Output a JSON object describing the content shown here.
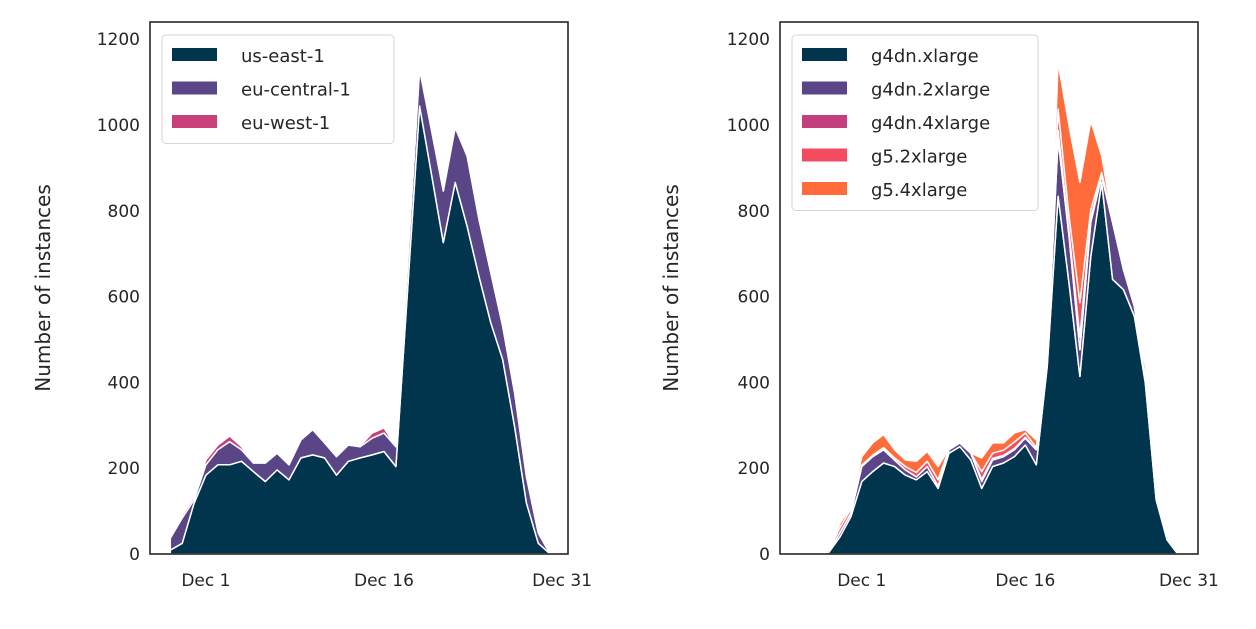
{
  "chart_data": [
    {
      "type": "area",
      "stacked": true,
      "ylabel": "Number of instances",
      "xlabel": "",
      "ylim": [
        0,
        1240
      ],
      "xlim": [
        "Nov 26 07:00",
        "Dec 31 12:00"
      ],
      "yticks": [
        0,
        200,
        400,
        600,
        800,
        1000,
        1200
      ],
      "xticks": [
        "Dec 1",
        "Dec 16",
        "Dec 31"
      ],
      "grid": false,
      "legend_placement": "upper-left",
      "x": [
        "Nov 28",
        "Nov 29",
        "Nov 30",
        "Dec 1",
        "Dec 2",
        "Dec 3",
        "Dec 4",
        "Dec 5",
        "Dec 6",
        "Dec 7",
        "Dec 8",
        "Dec 9",
        "Dec 10",
        "Dec 11",
        "Dec 12",
        "Dec 13",
        "Dec 14",
        "Dec 15",
        "Dec 16",
        "Dec 17",
        "Dec 18",
        "Dec 19",
        "Dec 20",
        "Dec 21",
        "Dec 22",
        "Dec 23",
        "Dec 24",
        "Dec 25",
        "Dec 26",
        "Dec 27",
        "Dec 28",
        "Dec 29",
        "Dec 30"
      ],
      "series": [
        {
          "name": "us-east-1",
          "color": "#01354d",
          "values": [
            9,
            25,
            118,
            184,
            208,
            208,
            216,
            192,
            169,
            196,
            173,
            224,
            231,
            224,
            184,
            216,
            224,
            231,
            239,
            204,
            620,
            1044,
            885,
            726,
            866,
            764,
            647,
            539,
            453,
            297,
            119,
            25,
            0
          ]
        },
        {
          "name": "eu-central-1",
          "color": "#5a4687",
          "values": [
            28,
            59,
            8,
            24,
            35,
            54,
            27,
            20,
            43,
            39,
            35,
            42,
            59,
            35,
            43,
            38,
            26,
            39,
            43,
            46,
            60,
            86,
            103,
            120,
            128,
            164,
            133,
            117,
            78,
            79,
            62,
            24,
            0
          ]
        },
        {
          "name": "eu-west-1",
          "color": "#c83f7a",
          "values": [
            2,
            7,
            7,
            11,
            11,
            13,
            7,
            0,
            0,
            0,
            0,
            2,
            0,
            0,
            0,
            2,
            2,
            12,
            12,
            0,
            0,
            3,
            2,
            2,
            5,
            2,
            0,
            0,
            0,
            0,
            0,
            0,
            0
          ]
        }
      ]
    },
    {
      "type": "area",
      "stacked": true,
      "ylabel": "Number of instances",
      "xlabel": "",
      "ylim": [
        0,
        1240
      ],
      "xlim": [
        "Nov 23 12:00",
        "Dec 31 20:00"
      ],
      "yticks": [
        0,
        200,
        400,
        600,
        800,
        1000,
        1200
      ],
      "xticks": [
        "Dec 1",
        "Dec 16",
        "Dec 31"
      ],
      "grid": false,
      "legend_placement": "upper-left",
      "x": [
        "Nov 26",
        "Nov 27",
        "Nov 28",
        "Nov 29",
        "Nov 30",
        "Dec 1",
        "Dec 2",
        "Dec 3",
        "Dec 4",
        "Dec 5",
        "Dec 6",
        "Dec 7",
        "Dec 8",
        "Dec 9",
        "Dec 10",
        "Dec 11",
        "Dec 12",
        "Dec 13",
        "Dec 14",
        "Dec 15",
        "Dec 16",
        "Dec 17",
        "Dec 18",
        "Dec 19",
        "Dec 20",
        "Dec 21",
        "Dec 22",
        "Dec 23",
        "Dec 24",
        "Dec 25",
        "Dec 26",
        "Dec 27",
        "Dec 28",
        "Dec 29",
        "Dec 30"
      ],
      "series": [
        {
          "name": "g4dn.xlarge",
          "color": "#01354d",
          "values": [
            0,
            0,
            5,
            40,
            87,
            169,
            192,
            212,
            204,
            184,
            173,
            192,
            153,
            235,
            250,
            219,
            153,
            204,
            212,
            227,
            254,
            208,
            437,
            834,
            632,
            414,
            694,
            866,
            640,
            616,
            554,
            399,
            126,
            33,
            0
          ]
        },
        {
          "name": "g4dn.2xlarge",
          "color": "#5a4687",
          "values": [
            0,
            0,
            0,
            10,
            8,
            35,
            35,
            31,
            15,
            12,
            7,
            12,
            5,
            8,
            9,
            16,
            16,
            15,
            15,
            16,
            16,
            35,
            20,
            133,
            109,
            62,
            79,
            15,
            133,
            47,
            23,
            10,
            5,
            0,
            0
          ]
        },
        {
          "name": "g4dn.4xlarge",
          "color": "#c33f7d",
          "values": [
            0,
            0,
            0,
            0,
            0,
            0,
            0,
            0,
            0,
            0,
            0,
            0,
            0,
            0,
            0,
            0,
            5,
            4,
            3,
            3,
            2,
            0,
            0,
            20,
            10,
            30,
            10,
            0,
            0,
            0,
            0,
            0,
            0,
            0,
            0
          ]
        },
        {
          "name": "g5.2xlarge",
          "color": "#f34b60",
          "values": [
            0,
            0,
            5,
            12,
            10,
            3,
            3,
            5,
            5,
            8,
            10,
            12,
            15,
            2,
            0,
            0,
            18,
            12,
            12,
            15,
            10,
            5,
            10,
            50,
            37,
            80,
            20,
            8,
            5,
            3,
            0,
            0,
            0,
            0,
            0
          ]
        },
        {
          "name": "g5.4xlarge",
          "color": "#ff6b3b",
          "values": [
            0,
            0,
            0,
            10,
            5,
            20,
            29,
            30,
            19,
            15,
            26,
            23,
            31,
            0,
            0,
            0,
            32,
            24,
            17,
            21,
            8,
            18,
            9,
            109,
            210,
            280,
            206,
            39,
            2,
            4,
            3,
            28,
            0,
            0,
            0
          ]
        }
      ]
    }
  ]
}
